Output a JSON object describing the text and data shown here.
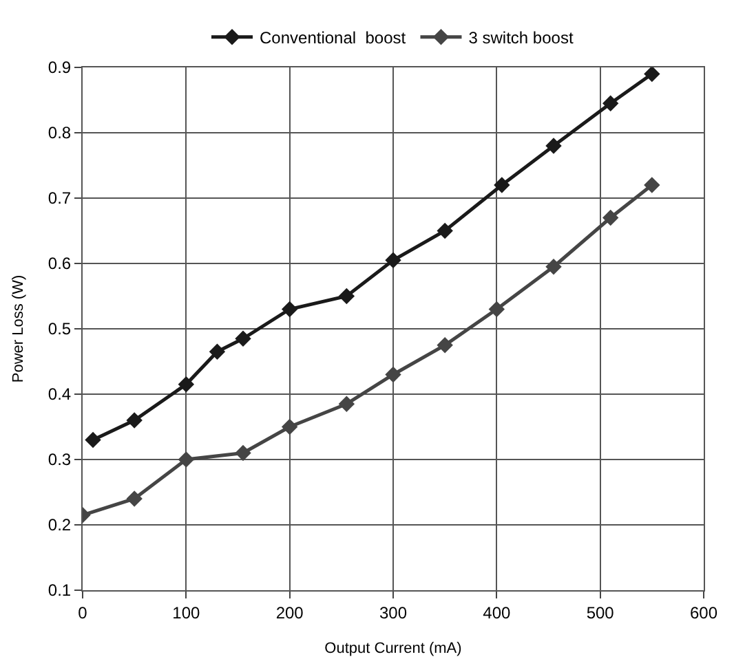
{
  "chart_data": {
    "type": "line",
    "xlabel": "Output Current (mA)",
    "ylabel": "Power Loss (W)",
    "series": [
      {
        "name": "Conventional  boost",
        "color": "#1a1a1a",
        "x": [
          10,
          50,
          100,
          130,
          155,
          200,
          255,
          300,
          350,
          405,
          455,
          510,
          550
        ],
        "values": [
          0.33,
          0.36,
          0.415,
          0.465,
          0.485,
          0.53,
          0.55,
          0.605,
          0.65,
          0.72,
          0.78,
          0.845,
          0.89
        ]
      },
      {
        "name": "3 switch boost",
        "color": "#454545",
        "x": [
          0,
          50,
          100,
          155,
          200,
          255,
          300,
          350,
          400,
          455,
          510,
          550
        ],
        "values": [
          0.215,
          0.24,
          0.3,
          0.31,
          0.35,
          0.385,
          0.43,
          0.475,
          0.53,
          0.595,
          0.67,
          0.72
        ]
      }
    ],
    "xlim": [
      0,
      600
    ],
    "xticks": [
      0,
      100,
      200,
      300,
      400,
      500,
      600
    ],
    "ylim": [
      0.1,
      0.9
    ],
    "yticks": [
      {
        "value": 0.1,
        "label": "0.1"
      },
      {
        "value": 0.2,
        "label": "0.2"
      },
      {
        "value": 0.3,
        "label": "0.3"
      },
      {
        "value": 0.4,
        "label": "0.4"
      },
      {
        "value": 0.5,
        "label": "0.5"
      },
      {
        "value": 0.6,
        "label": "0.6"
      },
      {
        "value": 0.7,
        "label": "0.7"
      },
      {
        "value": 0.8,
        "label": "0.8"
      },
      {
        "value": 0.9,
        "label": "0.9"
      }
    ],
    "grid": true,
    "legend": "top",
    "marker": "diamond",
    "line_style": "solid"
  }
}
